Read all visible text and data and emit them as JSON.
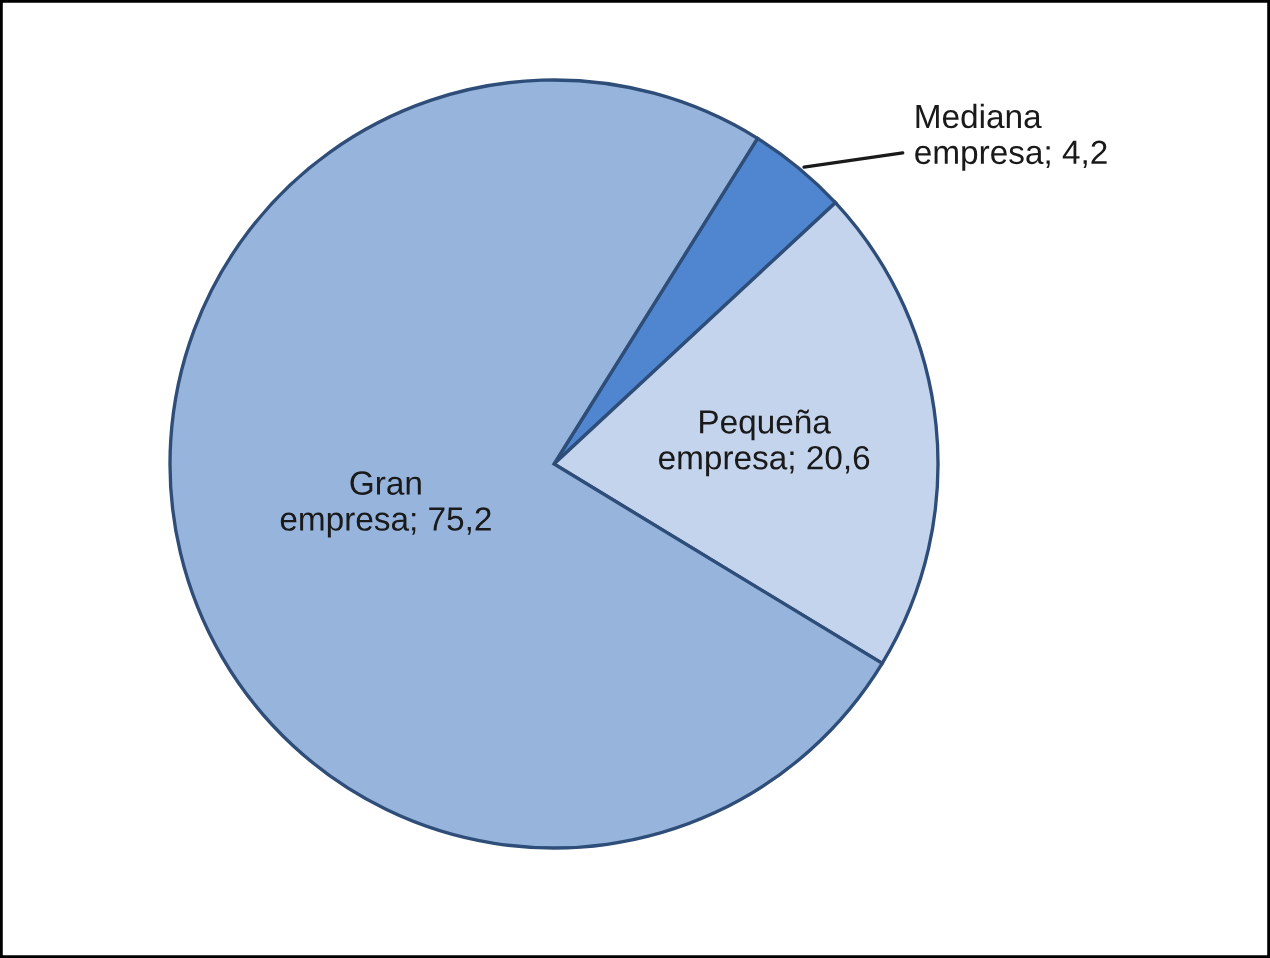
{
  "chart_data": {
    "type": "pie",
    "categories": [
      "Mediana empresa",
      "Pequeña empresa",
      "Gran empresa"
    ],
    "values": [
      4.2,
      20.6,
      75.2
    ],
    "value_labels": [
      "4,2",
      "20,6",
      "75,2"
    ],
    "colors": [
      "#4f86cf",
      "#c3d4ec",
      "#97b5dc"
    ],
    "legend": false
  }
}
